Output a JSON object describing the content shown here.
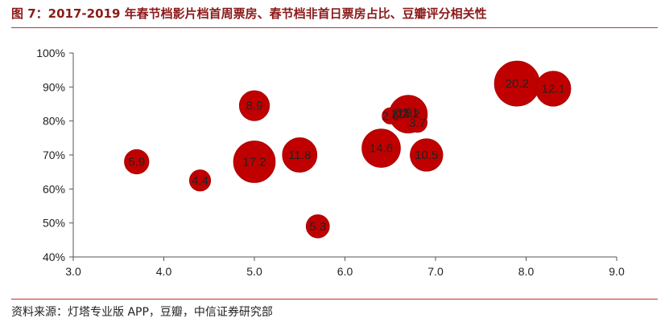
{
  "header": {
    "title": "图 7：2017-2019 年春节档影片档首周票房、春节档非首日票房占比、豆瓣评分相关性"
  },
  "footer": {
    "source": "资料来源：灯塔专业版 APP，豆瓣，中信证券研究部"
  },
  "colors": {
    "bubble": "#c00000",
    "bubble_stroke": "#a80000",
    "rule": "#c0302b",
    "title": "#8b1a1a"
  },
  "chart_data": {
    "type": "scatter",
    "title": "",
    "xlabel": "",
    "ylabel": "",
    "xlim": [
      3.0,
      9.0
    ],
    "ylim": [
      40,
      100
    ],
    "x_ticks": [
      "3.0",
      "4.0",
      "5.0",
      "6.0",
      "7.0",
      "8.0",
      "9.0"
    ],
    "y_ticks": [
      "40%",
      "50%",
      "60%",
      "70%",
      "80%",
      "90%",
      "100%"
    ],
    "grid": false,
    "size_encodes": "bubble label value",
    "points": [
      {
        "x": 3.7,
        "y": 68,
        "size": 5.9,
        "label": "5.9"
      },
      {
        "x": 4.4,
        "y": 62.5,
        "size": 4.4,
        "label": "4.4"
      },
      {
        "x": 5.0,
        "y": 84.5,
        "size": 8.9,
        "label": "8.9"
      },
      {
        "x": 5.0,
        "y": 68,
        "size": 17.2,
        "label": "17.2"
      },
      {
        "x": 5.5,
        "y": 70,
        "size": 11.8,
        "label": "11.8"
      },
      {
        "x": 5.7,
        "y": 49,
        "size": 5.3,
        "label": "5.3"
      },
      {
        "x": 6.4,
        "y": 72,
        "size": 14.6,
        "label": "14.6"
      },
      {
        "x": 6.5,
        "y": 81.5,
        "size": 2.6,
        "label": "2.6"
      },
      {
        "x": 6.6,
        "y": 82,
        "size": 1.2,
        "label": "1.2"
      },
      {
        "x": 6.65,
        "y": 82.5,
        "size": 0.9,
        "label": "0.9"
      },
      {
        "x": 6.72,
        "y": 82.5,
        "size": 1.1,
        "label": "1.1"
      },
      {
        "x": 6.7,
        "y": 82,
        "size": 14.2,
        "label": "14.2"
      },
      {
        "x": 6.8,
        "y": 79.5,
        "size": 3.7,
        "label": "3.7"
      },
      {
        "x": 6.9,
        "y": 70,
        "size": 10.5,
        "label": "10.5"
      },
      {
        "x": 7.9,
        "y": 91,
        "size": 20.2,
        "label": "20.2"
      },
      {
        "x": 8.3,
        "y": 89.5,
        "size": 12.1,
        "label": "12.1"
      }
    ]
  }
}
